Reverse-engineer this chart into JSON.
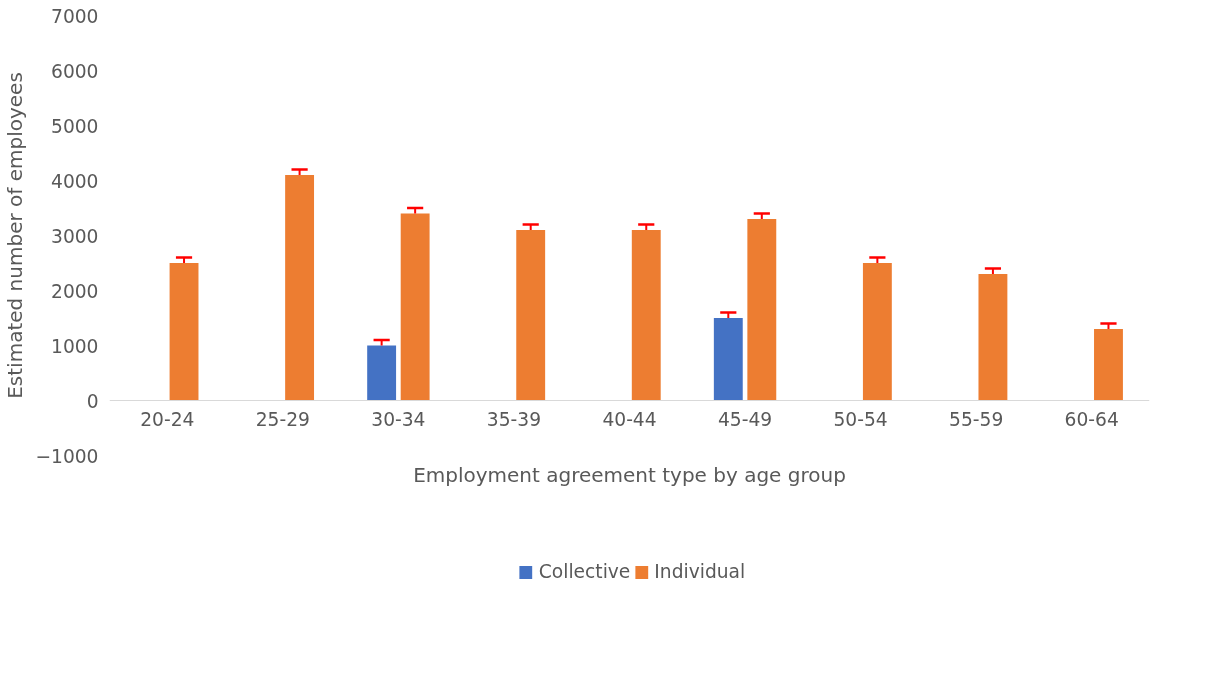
{
  "chart_data": {
    "type": "bar",
    "xlabel": "Employment agreement type by age group",
    "ylabel": "Estimated number of employees",
    "categories": [
      "20-24",
      "25-29",
      "30-34",
      "35-39",
      "40-44",
      "45-49",
      "50-54",
      "55-59",
      "60-64"
    ],
    "series": [
      {
        "name": "Collective",
        "color": "#4472c4",
        "values": [
          null,
          null,
          1000,
          null,
          null,
          1500,
          null,
          null,
          null
        ],
        "errors": [
          null,
          null,
          [
            1000,
            1100
          ],
          null,
          null,
          [
            1500,
            1600
          ],
          null,
          null,
          null
        ]
      },
      {
        "name": "Individual",
        "color": "#ed7d31",
        "values": [
          2500,
          4100,
          3400,
          3100,
          3100,
          3300,
          2500,
          2300,
          1300
        ],
        "errors": [
          [
            2500,
            2600
          ],
          [
            4100,
            4200
          ],
          [
            3400,
            3500
          ],
          [
            3100,
            3200
          ],
          [
            3100,
            3200
          ],
          [
            3300,
            3400
          ],
          [
            2500,
            2600
          ],
          [
            2300,
            2400
          ],
          [
            1300,
            1400
          ]
        ]
      }
    ],
    "ylim": [
      -1000,
      7000
    ],
    "yticks": [
      -1000,
      0,
      1000,
      2000,
      3000,
      4000,
      5000,
      6000,
      7000
    ],
    "grid": false,
    "legend": "bottom"
  }
}
